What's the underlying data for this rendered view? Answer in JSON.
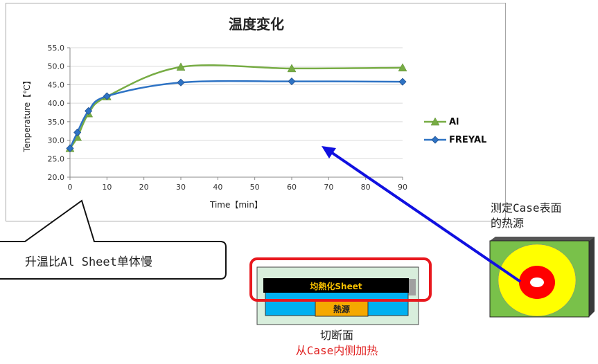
{
  "chart_data": {
    "type": "line",
    "title": "温度変化",
    "xlabel": "Time【min】",
    "ylabel": "Tenperature【℃】",
    "xlim": [
      0,
      90
    ],
    "ylim": [
      20.0,
      55.0
    ],
    "x_ticks": [
      "0",
      "10",
      "20",
      "30",
      "40",
      "50",
      "60",
      "70",
      "80",
      "90"
    ],
    "y_ticks": [
      "20.0",
      "25.0",
      "30.0",
      "35.0",
      "40.0",
      "45.0",
      "50.0",
      "55.0"
    ],
    "grid": true,
    "legend": "right",
    "series": [
      {
        "name": "Al",
        "color": "#77ac44",
        "marker": "triangle",
        "x": [
          0,
          2,
          5,
          10,
          30,
          60,
          90
        ],
        "y": [
          27.8,
          30.8,
          37.2,
          41.8,
          49.8,
          49.4,
          49.6
        ]
      },
      {
        "name": "FREYAL",
        "color": "#2e73c4",
        "marker": "diamond",
        "x": [
          0,
          2,
          5,
          10,
          30,
          60,
          90
        ],
        "y": [
          27.8,
          32.1,
          37.9,
          41.9,
          45.6,
          45.9,
          45.8
        ]
      }
    ]
  },
  "callout": {
    "text": "升温比Al Sheet单体慢"
  },
  "heat_source_caption": {
    "line1": "测定Case表面",
    "line2": "的热源"
  },
  "cross_section": {
    "sheet_label": "均熱化Sheet",
    "source_label": "熱源",
    "caption_line1": "切断面",
    "caption_line2": "从Case内侧加热"
  },
  "colors": {
    "arrow": "#1010e0",
    "highlight": "#e8181e",
    "caption_red": "#e02020"
  }
}
